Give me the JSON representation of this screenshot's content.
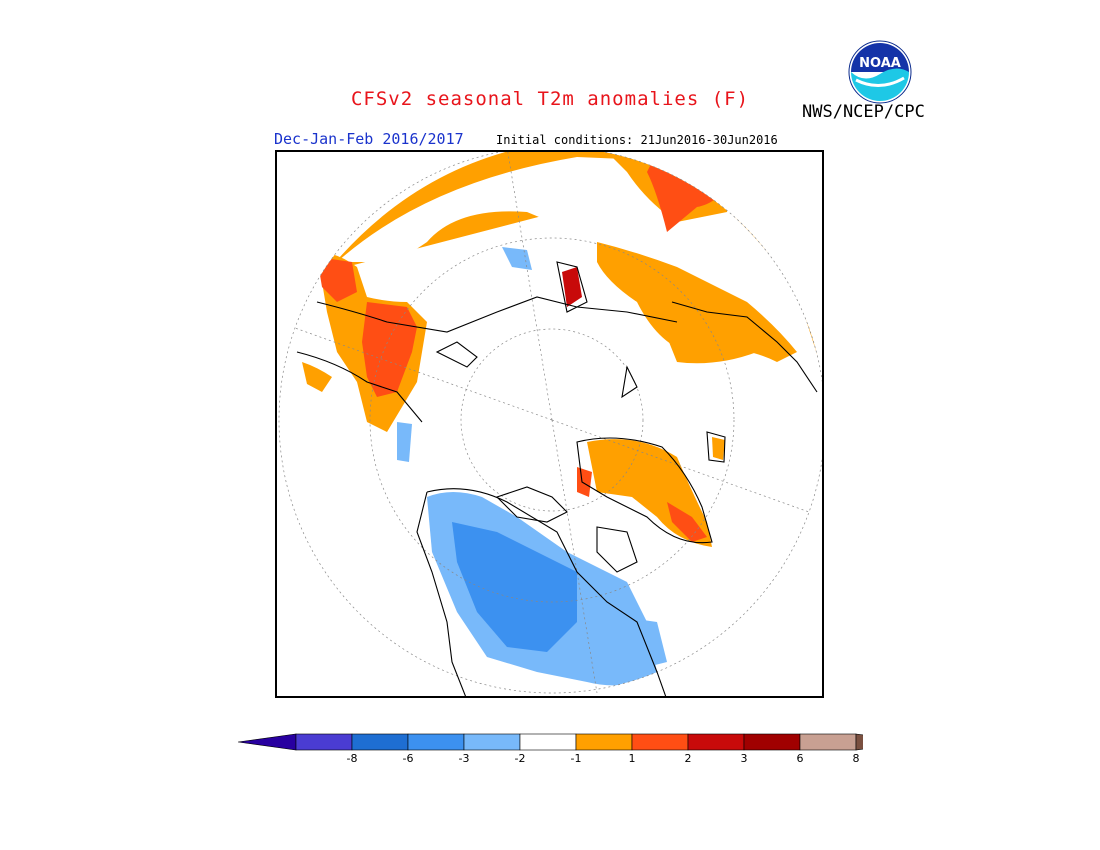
{
  "title": "CFSv2 seasonal T2m anomalies (F)",
  "agency": "NWS/NCEP/CPC",
  "logo_text": "NOAA",
  "season_label": "Dec-Jan-Feb 2016/2017",
  "initial_conditions": "Initial conditions: 21Jun2016-30Jun2016",
  "colors": {
    "title": "#e8141b",
    "season": "#1a33cc",
    "warm_1_2": "#ffa000",
    "warm_2_3": "#ff4e14",
    "warm_3_6": "#c80a0a",
    "cool_1_2": "#78b9fa",
    "cool_2_3": "#3c91f0"
  },
  "legend": {
    "ticks": [
      "-8",
      "-6",
      "-3",
      "-2",
      "-1",
      "1",
      "2",
      "3",
      "6",
      "8"
    ],
    "colors": [
      "#2800a0",
      "#4a3cd2",
      "#1e6ed2",
      "#3c91f0",
      "#78b9fa",
      "#ffffff",
      "#ffa000",
      "#ff4e14",
      "#c80a0a",
      "#a00000",
      "#c8a092",
      "#7a5040"
    ]
  }
}
